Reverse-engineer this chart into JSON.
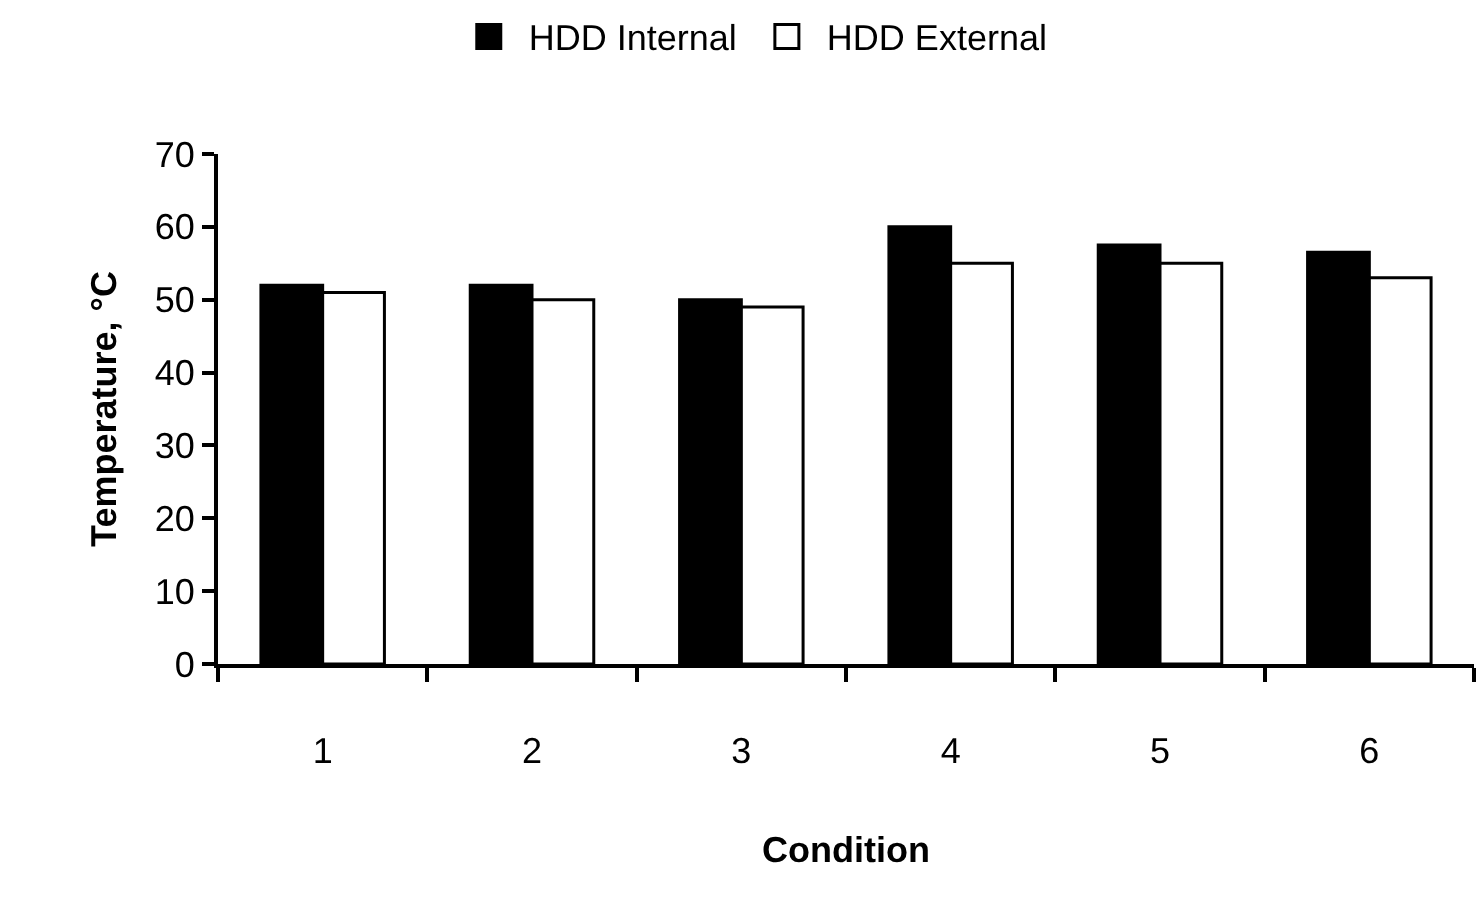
{
  "chart_data": {
    "type": "bar",
    "xlabel": "Condition",
    "ylabel": "Temperature, °C",
    "categories": [
      "1",
      "2",
      "3",
      "4",
      "5",
      "6"
    ],
    "series": [
      {
        "name": "HDD Internal",
        "color": "#000000",
        "values": [
          52,
          52,
          50,
          60,
          57.5,
          56.5
        ]
      },
      {
        "name": "HDD External",
        "color": "#ffffff",
        "values": [
          51,
          50,
          49,
          55,
          55,
          53
        ]
      }
    ],
    "ylim": [
      0,
      70
    ],
    "yticks": [
      0,
      10,
      20,
      30,
      40,
      50,
      60,
      70
    ],
    "legend": "top"
  }
}
